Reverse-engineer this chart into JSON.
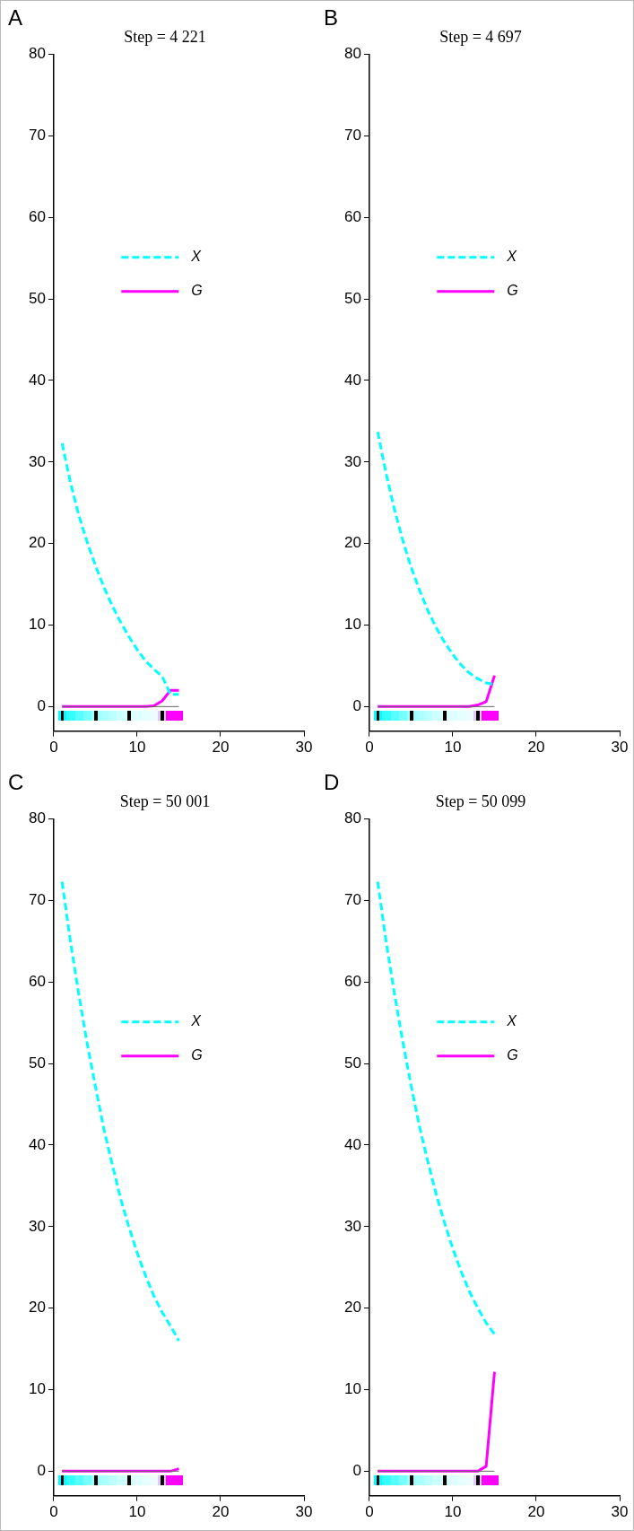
{
  "chart_data": [
    {
      "type": "line",
      "title": "Step = 4 221",
      "annotations": [
        "A"
      ],
      "x": [
        1,
        2,
        3,
        4,
        5,
        6,
        7,
        8,
        9,
        10,
        11,
        12,
        13,
        14,
        15
      ],
      "xlim": [
        0,
        30
      ],
      "xticks": [
        0,
        10,
        20,
        30
      ],
      "ylim": [
        -3,
        80
      ],
      "yticks": [
        0,
        10,
        20,
        30,
        40,
        50,
        60,
        70,
        80
      ],
      "grid": false,
      "legend": "center",
      "ref_lines": [
        {
          "axis": "y",
          "value": 0,
          "color": "#666666"
        }
      ],
      "series": [
        {
          "name": "X",
          "color": "#00ffff",
          "line_style": "dashed",
          "values": [
            32.3,
            27.5,
            23.5,
            20.2,
            17.3,
            14.7,
            12.4,
            10.4,
            8.6,
            7.0,
            5.6,
            4.6,
            3.7,
            1.5,
            1.5
          ]
        },
        {
          "name": "G",
          "color": "#ff00ff",
          "line_style": "solid",
          "values": [
            0,
            0,
            0,
            0,
            0,
            0,
            0,
            0,
            0,
            0,
            0,
            0.1,
            0.7,
            2.0,
            2.0
          ]
        }
      ]
    },
    {
      "type": "line",
      "title": "Step = 4 697",
      "annotations": [
        "B"
      ],
      "x": [
        1,
        2,
        3,
        4,
        5,
        6,
        7,
        8,
        9,
        10,
        11,
        12,
        13,
        14,
        15
      ],
      "xlim": [
        0,
        30
      ],
      "xticks": [
        0,
        10,
        20,
        30
      ],
      "ylim": [
        -3,
        80
      ],
      "yticks": [
        0,
        10,
        20,
        30,
        40,
        50,
        60,
        70,
        80
      ],
      "grid": false,
      "legend": "center",
      "ref_lines": [
        {
          "axis": "y",
          "value": 0,
          "color": "#666666"
        }
      ],
      "series": [
        {
          "name": "X",
          "color": "#00ffff",
          "line_style": "dashed",
          "values": [
            33.7,
            28.6,
            24.2,
            20.4,
            17.1,
            14.3,
            11.8,
            9.7,
            7.9,
            6.4,
            5.1,
            4.1,
            3.4,
            2.9,
            2.7
          ]
        },
        {
          "name": "G",
          "color": "#ff00ff",
          "line_style": "solid",
          "values": [
            0,
            0,
            0,
            0,
            0,
            0,
            0,
            0,
            0,
            0,
            0,
            0,
            0.2,
            0.6,
            3.8
          ]
        }
      ]
    },
    {
      "type": "line",
      "title": "Step = 50 001",
      "annotations": [
        "C"
      ],
      "x": [
        1,
        2,
        3,
        4,
        5,
        6,
        7,
        8,
        9,
        10,
        11,
        12,
        13,
        14,
        15
      ],
      "xlim": [
        0,
        30
      ],
      "xticks": [
        0,
        10,
        20,
        30
      ],
      "ylim": [
        -3,
        80
      ],
      "yticks": [
        0,
        10,
        20,
        30,
        40,
        50,
        60,
        70,
        80
      ],
      "grid": false,
      "legend": "center",
      "ref_lines": [
        {
          "axis": "y",
          "value": 0,
          "color": "#666666"
        }
      ],
      "series": [
        {
          "name": "X",
          "color": "#00ffff",
          "line_style": "dashed",
          "values": [
            72.3,
            65,
            58.5,
            52.5,
            47.2,
            42,
            37.7,
            33.5,
            30,
            26.8,
            24,
            21.5,
            19.5,
            17.8,
            16
          ]
        },
        {
          "name": "G",
          "color": "#ff00ff",
          "line_style": "solid",
          "values": [
            0,
            0,
            0,
            0,
            0,
            0,
            0,
            0,
            0,
            0,
            0,
            0,
            0,
            0,
            0.3
          ]
        }
      ]
    },
    {
      "type": "line",
      "title": "Step = 50 099",
      "annotations": [
        "D"
      ],
      "x": [
        1,
        2,
        3,
        4,
        5,
        6,
        7,
        8,
        9,
        10,
        11,
        12,
        13,
        14,
        15
      ],
      "xlim": [
        0,
        30
      ],
      "xticks": [
        0,
        10,
        20,
        30
      ],
      "ylim": [
        -3,
        80
      ],
      "yticks": [
        0,
        10,
        20,
        30,
        40,
        50,
        60,
        70,
        80
      ],
      "grid": false,
      "legend": "center",
      "ref_lines": [
        {
          "axis": "y",
          "value": 0,
          "color": "#666666"
        }
      ],
      "series": [
        {
          "name": "X",
          "color": "#00ffff",
          "line_style": "dashed",
          "values": [
            72.3,
            65,
            58.6,
            52.7,
            47.3,
            42.3,
            38,
            34,
            30.5,
            27.3,
            24.5,
            22,
            20,
            18.2,
            16.8
          ]
        },
        {
          "name": "G",
          "color": "#ff00ff",
          "line_style": "solid",
          "values": [
            0,
            0,
            0,
            0,
            0,
            0,
            0,
            0,
            0,
            0,
            0,
            0,
            0,
            0.6,
            12.2
          ]
        }
      ]
    }
  ]
}
